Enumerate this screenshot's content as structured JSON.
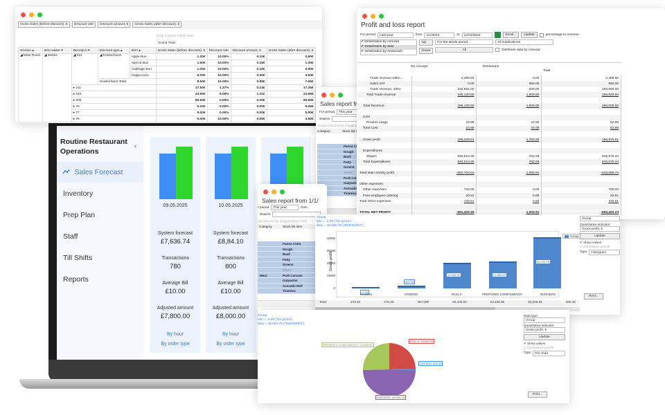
{
  "pivot_window": {
    "field_buttons": [
      "Gross Sales (before discount), €",
      "Discount rate",
      "Discount amount, €",
      "Gross Sales (after discount), €"
    ],
    "drop_hint": "Drop Column Fields Here",
    "grand_total": "Grand Total",
    "row_headers": [
      "Section",
      "Item waiter",
      "Receipt n",
      "Discount type",
      "Item"
    ],
    "value_headers": [
      "Gross Sales (before discount), €",
      "Discount rate",
      "Discount amount, €",
      "Gross Sales (after discount), €"
    ],
    "section": "Main Room",
    "waiter": "James",
    "receipt": "212",
    "discount_type": "Cooled buns",
    "subtotal_label": "Cooled buns Total",
    "item_rows": [
      {
        "item": "Apple Bun",
        "before": "1.00€",
        "rate": "10.00%",
        "amount": "0.10€",
        "after": "0.90€"
      },
      {
        "item": "Apricot Bun",
        "before": "1.50€",
        "rate": "10.00%",
        "amount": "0.15€",
        "after": "1.35€"
      },
      {
        "item": "Cabbage Bun",
        "before": "1.00€",
        "rate": "10.00%",
        "amount": "0.10€",
        "after": "0.90€"
      },
      {
        "item": "Cappuccino",
        "before": "5.00€",
        "rate": "10.00%",
        "amount": "0.50€",
        "after": "4.50€"
      }
    ],
    "subtotal": {
      "before": "8.50€",
      "rate": "10.00%",
      "amount": "0.85€",
      "after": "7.65€"
    },
    "receipt_rows": [
      {
        "receipt": "211",
        "before": "17.50€",
        "rate": "1.37%",
        "amount": "0.24€",
        "after": "17.26€"
      },
      {
        "receipt": "210",
        "before": "23.90€",
        "rate": "5.06%",
        "amount": "1.21€",
        "after": "22.69€"
      },
      {
        "receipt": "209",
        "before": "90.60€",
        "rate": "0.00%",
        "amount": "0.00€",
        "after": "90.60€"
      },
      {
        "receipt": "78",
        "before": "5.00€",
        "rate": "0.00%",
        "amount": "0.00€",
        "after": "5.00€"
      },
      {
        "receipt": "77",
        "before": "5.00€",
        "rate": "0.00%",
        "amount": "0.00€",
        "after": "5.00€"
      },
      {
        "receipt": "76",
        "before": "5.00€",
        "rate": "10.00%",
        "amount": "0.50€",
        "after": "4.50€"
      }
    ]
  },
  "pnl_window": {
    "title": "Profit and loss report",
    "period_label": "For period",
    "period_value": "Last year",
    "from_label": "from",
    "from_value": "1/1/2023",
    "to_label": "to",
    "to_value": "12/31/2023",
    "excel_btn": "Excel...",
    "update_btn": "Update",
    "pct_revenue": "percentage to revenue",
    "detail_options": [
      "Detalization by concept",
      "Detalization by date",
      "Detalization by restaurant"
    ],
    "up_btn": "Up",
    "down_btn": "Down",
    "whole_period": "For the whole period",
    "subdivisions": "All subdivisions",
    "all_value": "All",
    "distribute": "Distribute data by concept",
    "col_headers": [
      "No concept",
      "Restaurant",
      "Total"
    ],
    "rows": [
      {
        "label": "Trade revenue witho...",
        "a": "2,468.50",
        "b": "0.00",
        "c": "2,468.50",
        "indent": 3,
        "u": false,
        "bold": false
      },
      {
        "label": "Sales VAT",
        "a": "0.00",
        "b": "960.00",
        "c": "960.00",
        "indent": 3,
        "u": false,
        "bold": false
      },
      {
        "label": "Trade revenue, other",
        "a": "192,652.00",
        "b": "848.00",
        "c": "193,500.00",
        "indent": 3,
        "u": false,
        "bold": false
      },
      {
        "label": "Total Trade revenue",
        "a": "195,120.50",
        "b": "1,808.00",
        "c": "196,928.50",
        "indent": 2,
        "u": true,
        "bold": false
      },
      {
        "label": "",
        "a": "",
        "b": "",
        "c": "",
        "indent": 0,
        "u": false,
        "bold": false
      },
      {
        "label": "Total Revenue",
        "a": "195,120.50",
        "b": "1,808.00",
        "c": "196,928.50",
        "indent": 1,
        "u": true,
        "bold": false
      },
      {
        "label": "",
        "a": "",
        "b": "",
        "c": "",
        "indent": 0,
        "u": false,
        "bold": false
      },
      {
        "label": "Cost",
        "a": "",
        "b": "",
        "c": "",
        "indent": 1,
        "u": false,
        "bold": false
      },
      {
        "label": "Product usage",
        "a": "10.89",
        "b": "42.00",
        "c": "52.89",
        "indent": 2,
        "u": false,
        "bold": false
      },
      {
        "label": "Total Cost",
        "a": "10.89",
        "b": "42.00",
        "c": "52.89",
        "indent": 1,
        "u": true,
        "bold": false
      },
      {
        "label": "",
        "a": "",
        "b": "",
        "c": "",
        "indent": 0,
        "u": false,
        "bold": false
      },
      {
        "label": "Gross profit",
        "a": "195,109.61",
        "b": "1,766.00",
        "c": "196,875.61",
        "indent": 1,
        "u": true,
        "bold": false
      },
      {
        "label": "",
        "a": "",
        "b": "",
        "c": "",
        "indent": 0,
        "u": false,
        "bold": false
      },
      {
        "label": "Expenditures",
        "a": "",
        "b": "",
        "c": "",
        "indent": 1,
        "u": false,
        "bold": false
      },
      {
        "label": "Wages",
        "a": "845,813.25",
        "b": "762.09",
        "c": "846,575.34",
        "indent": 2,
        "u": false,
        "bold": false
      },
      {
        "label": "Total Expenditures",
        "a": "845,813.25",
        "b": "762.09",
        "c": "846,575.34",
        "indent": 1,
        "u": true,
        "bold": false
      },
      {
        "label": "",
        "a": "",
        "b": "",
        "c": "",
        "indent": 0,
        "u": false,
        "bold": false
      },
      {
        "label": "Total Main activity profit",
        "a": "-650,703.64",
        "b": "1,003.91",
        "c": "-649,699.73",
        "indent": 0,
        "u": true,
        "bold": false
      },
      {
        "label": "",
        "a": "",
        "b": "",
        "c": "",
        "indent": 0,
        "u": false,
        "bold": false
      },
      {
        "label": "Other expenses",
        "a": "",
        "b": "",
        "c": "",
        "indent": 0,
        "u": false,
        "bold": false
      },
      {
        "label": "Other expenses",
        "a": "700.00",
        "b": "0.00",
        "c": "700.00",
        "indent": 1,
        "u": false,
        "bold": false
      },
      {
        "label": "Free employee catering",
        "a": "20.51",
        "b": "0.00",
        "c": "20.51",
        "indent": 1,
        "u": false,
        "bold": false
      },
      {
        "label": "Total Other expenses",
        "a": "720.51",
        "b": "0.00",
        "c": "720.51",
        "indent": 0,
        "u": true,
        "bold": false
      },
      {
        "label": "",
        "a": "",
        "b": "",
        "c": "",
        "indent": 0,
        "u": false,
        "bold": false
      },
      {
        "label": "TOTAL NET PROFIT",
        "a": "-651,424.15",
        "b": "1,003.91",
        "c": "-650,420.24",
        "indent": 0,
        "u": true,
        "bold": true
      }
    ]
  },
  "app": {
    "sidebar": {
      "title": "Routine Restaurant Operations",
      "collapse_icon": "‹",
      "items": [
        {
          "label": "Sales Forecast",
          "icon": "chart-icon",
          "active": true
        },
        {
          "label": "Inventory"
        },
        {
          "label": "Prep Plan"
        },
        {
          "label": "Staff"
        },
        {
          "label": "Till Shifts"
        },
        {
          "label": "Reports"
        }
      ]
    },
    "labels": {
      "system_forecast": "System forecast",
      "transactions": "Transactions",
      "average_bill": "Average Bill",
      "adjusted_amount": "Adjusted amount",
      "by_hour": "By hour",
      "by_order_type": "By otder type"
    },
    "cards": [
      {
        "date": "09.05.2025",
        "forecast": "£7,636.74",
        "transactions": "780",
        "avg_bill": "£10.00",
        "adjusted": "£7,800.00"
      },
      {
        "date": "10.05.2025",
        "forecast": "£8,84.10",
        "transactions": "800",
        "avg_bill": "£10.00",
        "adjusted": "£8,000.00"
      },
      {
        "date": "",
        "forecast": "",
        "transactions": "",
        "avg_bill": "",
        "adjusted": ""
      }
    ],
    "colors": {
      "blue_bar": "#3f8ef5",
      "green_bar": "#2ed62e",
      "accent": "#3c7ddb"
    }
  },
  "sales_window_1": {
    "title": "Sales report fro",
    "period_label": "For period",
    "period_value": "This year",
    "search_label": "Search",
    "group_hint": "Group columns by dragging them here",
    "col_headers": [
      "Category",
      "Stock list item"
    ],
    "items": [
      "Panna Cotta",
      "Dough",
      "Basil",
      "Patty",
      "Greens",
      "Olives",
      "Pork Carcass",
      "Gazpacho",
      "Avocado Roll",
      "Tiramisu"
    ]
  },
  "sales_window_2": {
    "title": "Sales report from 1/1/",
    "period_label": "r period",
    "period_value": "This year",
    "from_label": "from",
    "search_label": "Search",
    "group_hint": "up columns by dragging them here",
    "col_headers": [
      "Category",
      "Stock list item"
    ],
    "category_meat": "Meat",
    "items": [
      "Panna Cotta",
      "Dough",
      "Basil",
      "Patty",
      "Greens",
      "Olives",
      "Pork Carcass",
      "Gazpacho",
      "Avocado Roll",
      "Tiramisu"
    ],
    "total_label": "Total:"
  },
  "bar_window": {
    "info": [
      "Group",
      "Min = -2.00 (\"for pizza\")",
      "Max = 40,020.75 (\"BURGERS\")"
    ],
    "legend": "Group",
    "totals": [
      "Total:",
      "276.20",
      "276.20",
      "357.000",
      "94,436.00",
      "94,436.00",
      "81,049.65",
      "605.46"
    ],
    "panel": {
      "group_value": "Group",
      "quant_label": "Quantitative indicator:",
      "quant_value": "Gross profit, £",
      "update": "Update",
      "show_values": "Show values",
      "cumulative": "Cumulative growth",
      "type_label": "Type:",
      "type_value": "Histogram",
      "print": "Print..."
    }
  },
  "pie_window": {
    "info": [
      "Group",
      "Min = -2.00 (\"for pizza\")",
      "Max = 40,020.75 (\"BURGERS\")"
    ],
    "panel": {
      "data_type_label": "Data type:",
      "data_type_value": "Group",
      "quant_label": "Quantitative indicator:",
      "quant_value": "Gross profit, €",
      "update": "Update",
      "show_values": "Show values",
      "cumulative": "Cumulative growth",
      "type_label": "Type:",
      "type_value": "Pie chart",
      "print": "Print..."
    },
    "slice_labels": [
      "PREPARED COMPONENTS: 21,689.50",
      "ROLLS: 19,639.00",
      "GREENS: 899.33",
      "BURGERS: 40,020.75"
    ]
  },
  "chart_data": [
    {
      "type": "bar",
      "title": "Group",
      "categories": [
        "for pizza",
        "GREENS",
        "ROLLS",
        "PREPARED COMPONENTS",
        "BURGERS"
      ],
      "values": [
        -2.0,
        899.33,
        19639.0,
        21689.5,
        40020.75
      ],
      "value_labels": [
        "-2.00",
        "899.33",
        "19,639.00",
        "21,689.50",
        "40,020.75"
      ],
      "xlabel": "",
      "ylabel": "Gross profit",
      "yticks": [
        0,
        10000,
        20000,
        30000,
        40000
      ],
      "ylim": [
        0,
        42000
      ],
      "legend": [
        "Group"
      ]
    },
    {
      "type": "pie",
      "title": "Group",
      "categories": [
        "PREPARED COMPONENTS",
        "ROLLS",
        "GREENS",
        "BURGERS"
      ],
      "values": [
        21689.5,
        19639.0,
        899.33,
        40020.75
      ],
      "colors": [
        "#a6c85a",
        "#d24a45",
        "#3d8fd6",
        "#8a64b0"
      ]
    }
  ]
}
